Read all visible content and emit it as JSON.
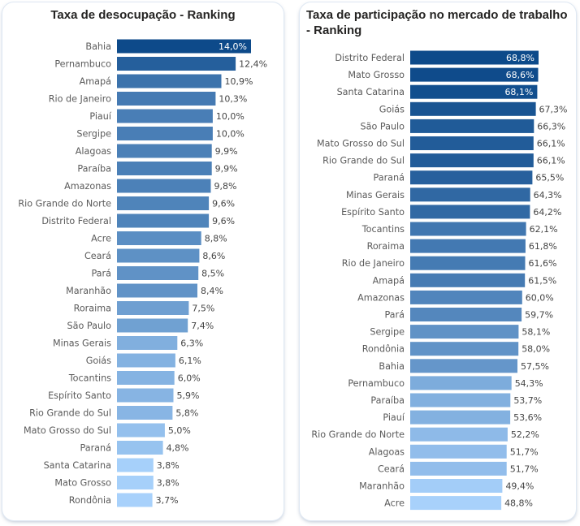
{
  "chart_data": [
    {
      "type": "bar",
      "orientation": "horizontal",
      "title": "Taxa de desocupação - Ranking",
      "categories": [
        "Bahia",
        "Pernambuco",
        "Amapá",
        "Rio de Janeiro",
        "Piauí",
        "Sergipe",
        "Alagoas",
        "Paraíba",
        "Amazonas",
        "Rio Grande do Norte",
        "Distrito Federal",
        "Acre",
        "Ceará",
        "Pará",
        "Maranhão",
        "Roraima",
        "São Paulo",
        "Minas Gerais",
        "Goiás",
        "Tocantins",
        "Espírito Santo",
        "Rio Grande do Sul",
        "Mato Grosso do Sul",
        "Paraná",
        "Santa Catarina",
        "Mato Grosso",
        "Rondônia"
      ],
      "values": [
        14.0,
        12.4,
        10.9,
        10.3,
        10.0,
        10.0,
        9.9,
        9.9,
        9.8,
        9.6,
        9.6,
        8.8,
        8.6,
        8.5,
        8.4,
        7.5,
        7.4,
        6.3,
        6.1,
        6.0,
        5.9,
        5.8,
        5.0,
        4.8,
        3.8,
        3.8,
        3.7
      ],
      "value_labels": [
        "14,0%",
        "12,4%",
        "10,9%",
        "10,3%",
        "10,0%",
        "10,0%",
        "9,9%",
        "9,9%",
        "9,8%",
        "9,6%",
        "9,6%",
        "8,8%",
        "8,6%",
        "8,5%",
        "8,4%",
        "7,5%",
        "7,4%",
        "6,3%",
        "6,1%",
        "6,0%",
        "5,9%",
        "5,8%",
        "5,0%",
        "4,8%",
        "3,8%",
        "3,8%",
        "3,7%"
      ],
      "xlim": [
        0,
        14.0
      ],
      "grid": false,
      "color_range": [
        "#0d4a8a",
        "#a8d1fb"
      ]
    },
    {
      "type": "bar",
      "orientation": "horizontal",
      "title": "Taxa de participação no mercado de trabalho - Ranking",
      "categories": [
        "Distrito Federal",
        "Mato Grosso",
        "Santa Catarina",
        "Goiás",
        "São Paulo",
        "Mato Grosso do Sul",
        "Rio Grande do Sul",
        "Paraná",
        "Minas Gerais",
        "Espírito Santo",
        "Tocantins",
        "Roraima",
        "Rio de Janeiro",
        "Amapá",
        "Amazonas",
        "Pará",
        "Sergipe",
        "Rondônia",
        "Bahia",
        "Pernambuco",
        "Paraíba",
        "Piauí",
        "Rio Grande do Norte",
        "Alagoas",
        "Ceará",
        "Maranhão",
        "Acre"
      ],
      "values": [
        68.8,
        68.6,
        68.1,
        67.3,
        66.3,
        66.1,
        66.1,
        65.5,
        64.3,
        64.2,
        62.1,
        61.8,
        61.6,
        61.5,
        60.0,
        59.7,
        58.1,
        58.0,
        57.5,
        54.3,
        53.7,
        53.6,
        52.2,
        51.7,
        51.7,
        49.4,
        48.8
      ],
      "value_labels": [
        "68,8%",
        "68,6%",
        "68,1%",
        "67,3%",
        "66,3%",
        "66,1%",
        "66,1%",
        "65,5%",
        "64,3%",
        "64,2%",
        "62,1%",
        "61,8%",
        "61,6%",
        "61,5%",
        "60,0%",
        "59,7%",
        "58,1%",
        "58,0%",
        "57,5%",
        "54,3%",
        "53,7%",
        "53,6%",
        "52,2%",
        "51,7%",
        "51,7%",
        "49,4%",
        "48,8%"
      ],
      "xlim": [
        0,
        68.8
      ],
      "grid": false,
      "color_range": [
        "#0d4a8a",
        "#a8d1fb"
      ]
    }
  ]
}
